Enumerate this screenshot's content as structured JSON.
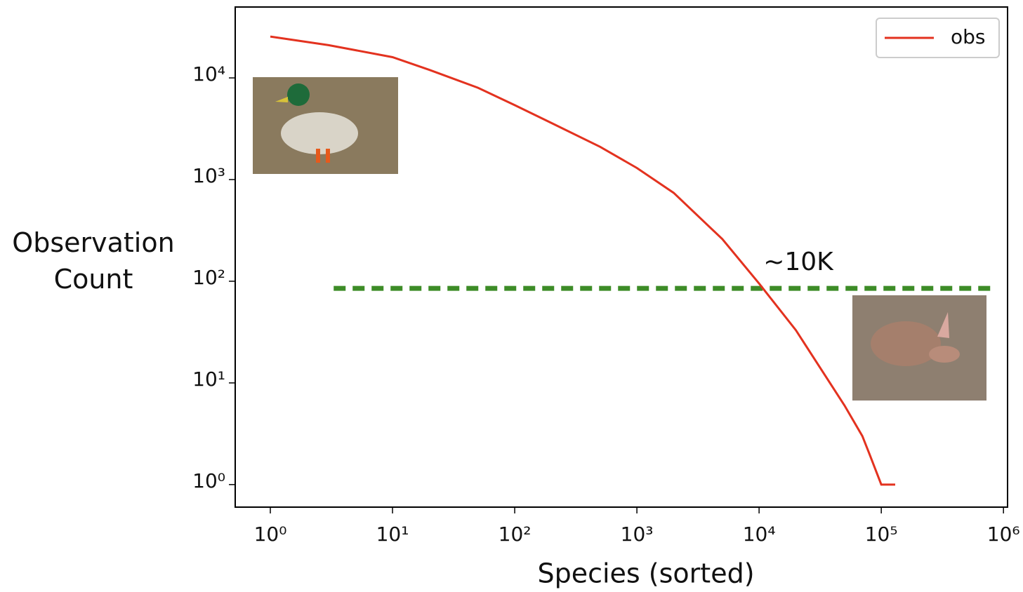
{
  "chart_data": {
    "type": "line",
    "xlabel": "Species (sorted)",
    "ylabel": "Observation Count",
    "x": [
      1,
      3,
      10,
      20,
      50,
      100,
      200,
      500,
      1000,
      2000,
      5000,
      10000,
      20000,
      50000,
      70000,
      80000,
      100000,
      130000
    ],
    "series": [
      {
        "name": "obs",
        "color": "#e3321f",
        "values": [
          25500,
          21000,
          16000,
          12000,
          8000,
          5400,
          3600,
          2100,
          1300,
          740,
          260,
          95,
          33,
          6,
          3,
          2,
          1,
          1
        ]
      }
    ],
    "xscale": "log",
    "yscale": "log",
    "xlim": [
      0.516,
      1080000
    ],
    "ylim": [
      0.6,
      49800
    ],
    "xticks": [
      {
        "value": 1,
        "label": "10⁰"
      },
      {
        "value": 10,
        "label": "10¹"
      },
      {
        "value": 100,
        "label": "10²"
      },
      {
        "value": 1000,
        "label": "10³"
      },
      {
        "value": 10000,
        "label": "10⁴"
      },
      {
        "value": 100000,
        "label": "10⁵"
      },
      {
        "value": 1000000,
        "label": "10⁶"
      }
    ],
    "yticks": [
      {
        "value": 1,
        "label": "10⁰"
      },
      {
        "value": 10,
        "label": "10¹"
      },
      {
        "value": 100,
        "label": "10²"
      },
      {
        "value": 1000,
        "label": "10³"
      },
      {
        "value": 10000,
        "label": "10⁴"
      }
    ],
    "reference_line": {
      "value": 85,
      "x": [
        3.3,
        780000
      ],
      "color": "#3d8c27"
    },
    "annotation": "~10K",
    "legend": "upper right",
    "grid": false
  }
}
